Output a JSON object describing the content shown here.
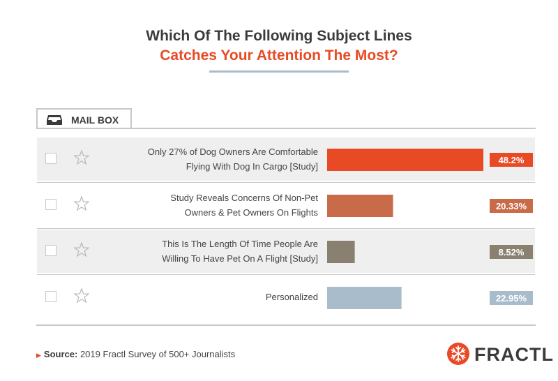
{
  "title_line1": "Which Of The Following Subject Lines",
  "title_line2": "Catches Your Attention The Most?",
  "mailbox_label": "MAIL BOX",
  "source_label": "Source:",
  "source_text": "2019 Fractl Survey of 500+ Journalists",
  "logo_text": "FRACTL",
  "chart_data": {
    "type": "bar",
    "orientation": "horizontal",
    "categories": [
      [
        "Only 27% of Dog Owners Are Comfortable",
        "Flying With Dog In Cargo [Study]"
      ],
      [
        "Study Reveals Concerns Of Non-Pet",
        "Owners & Pet Owners On Flights"
      ],
      [
        "This Is The Length Of Time People Are",
        "Willing To Have Pet On A Flight [Study]"
      ],
      [
        "Personalized"
      ]
    ],
    "values": [
      48.2,
      20.33,
      8.52,
      22.95
    ],
    "value_labels": [
      "48.2%",
      "20.33%",
      "8.52%",
      "22.95%"
    ],
    "colors": [
      "#e84a25",
      "#c96a48",
      "#8a8070",
      "#a8bccb"
    ],
    "title": "Which Of The Following Subject Lines Catches Your Attention The Most?",
    "xlim": [
      0,
      48.2
    ],
    "legend": "none",
    "grid": false
  }
}
